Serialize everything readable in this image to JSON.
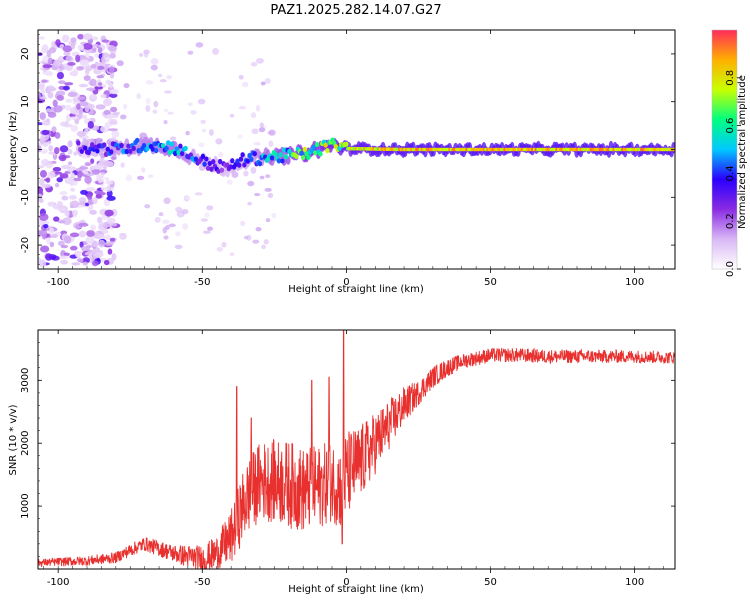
{
  "title": "PAZ1.2025.282.14.07.G27",
  "chart_data": [
    {
      "type": "heatmap",
      "xlabel": "Height of straight line (km)",
      "ylabel": "Frequency (Hz)",
      "xlim": [
        -107,
        114
      ],
      "ylim": [
        -25,
        25
      ],
      "xticks": [
        -100,
        -50,
        0,
        50,
        100
      ],
      "yticks": [
        -20,
        -10,
        0,
        10,
        20
      ],
      "colorbar": {
        "label": "Normalized spectral amplitude",
        "range": [
          0,
          1
        ],
        "ticks": [
          0.0,
          0.2,
          0.4,
          0.6,
          0.8
        ],
        "tick_labels": [
          "0.0",
          "0.2",
          "0.4",
          "0.6",
          "0.8"
        ],
        "colormap": [
          "#ffffff",
          "#d9b8f5",
          "#8a2be2",
          "#2a00ff",
          "#00c8ff",
          "#00ff80",
          "#c8ff00",
          "#ffb000",
          "#ff2a5a"
        ]
      },
      "ridge": {
        "description_points": [
          {
            "x": -92,
            "freq": 0.5,
            "amp": 0.35
          },
          {
            "x": -80,
            "freq": 0.0,
            "amp": 0.45
          },
          {
            "x": -70,
            "freq": 1.0,
            "amp": 0.5
          },
          {
            "x": -60,
            "freq": 0.5,
            "amp": 0.55
          },
          {
            "x": -50,
            "freq": -2.5,
            "amp": 0.4
          },
          {
            "x": -42,
            "freq": -4.0,
            "amp": 0.35
          },
          {
            "x": -35,
            "freq": -2.0,
            "amp": 0.4
          },
          {
            "x": -25,
            "freq": -1.5,
            "amp": 0.6
          },
          {
            "x": -15,
            "freq": -1.0,
            "amp": 0.7
          },
          {
            "x": -5,
            "freq": 1.0,
            "amp": 0.8
          },
          {
            "x": 0,
            "freq": 0.2,
            "amp": 0.85
          },
          {
            "x": 20,
            "freq": 0.0,
            "amp": 0.9
          },
          {
            "x": 60,
            "freq": 0.0,
            "amp": 0.9
          },
          {
            "x": 114,
            "freq": 0.0,
            "amp": 0.9
          }
        ],
        "scatter_noise_region": [
          -107,
          -80
        ]
      }
    },
    {
      "type": "line",
      "xlabel": "Height of straight line (km)",
      "ylabel": "SNR (10 * v/v)",
      "xlim": [
        -107,
        114
      ],
      "ylim": [
        0,
        3800
      ],
      "xticks": [
        -100,
        -50,
        0,
        50,
        100
      ],
      "yticks": [
        1000,
        2000,
        3000
      ],
      "series": [
        {
          "name": "SNR",
          "color": "#e8312f",
          "trend_x": [
            -107,
            -90,
            -80,
            -75,
            -70,
            -60,
            -50,
            -45,
            -40,
            -35,
            -30,
            -25,
            -20,
            -15,
            -10,
            -5,
            -2,
            0,
            5,
            10,
            15,
            20,
            25,
            30,
            35,
            40,
            50,
            60,
            70,
            80,
            90,
            100,
            114
          ],
          "trend_y": [
            100,
            130,
            180,
            300,
            400,
            250,
            150,
            250,
            500,
            1100,
            1400,
            1400,
            1350,
            1250,
            1300,
            1400,
            1300,
            1500,
            1700,
            2000,
            2300,
            2600,
            2800,
            3050,
            3200,
            3300,
            3400,
            3400,
            3380,
            3380,
            3380,
            3380,
            3360
          ],
          "noise_x": [
            -107,
            -80,
            -60,
            -45,
            -35,
            -20,
            -5,
            0,
            10,
            25,
            40,
            114
          ],
          "noise_y": [
            60,
            90,
            140,
            280,
            600,
            700,
            650,
            700,
            500,
            200,
            120,
            100
          ],
          "spikes": [
            {
              "x": -1,
              "y": 3800
            },
            {
              "x": -1.5,
              "y": 400
            },
            {
              "x": -38,
              "y": 2900
            },
            {
              "x": -33,
              "y": 2400
            },
            {
              "x": -12,
              "y": 3000
            },
            {
              "x": -6,
              "y": 3050
            }
          ]
        }
      ]
    }
  ]
}
